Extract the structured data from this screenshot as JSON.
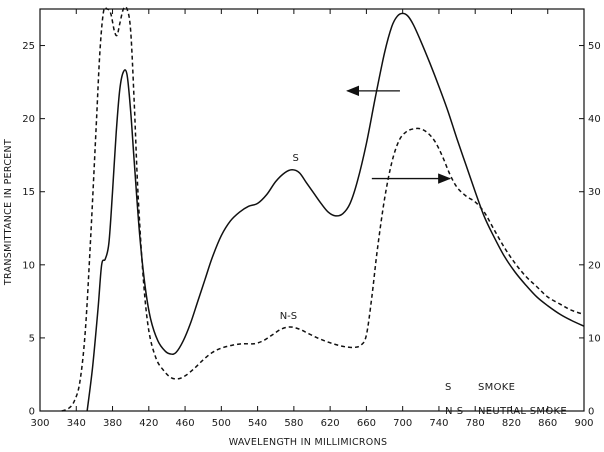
{
  "chart_data": {
    "type": "line",
    "title": "",
    "xlabel": "WAVELENGTH IN MILLIMICRONS",
    "ylabel": "TRANSMITTANCE IN PERCENT",
    "xlim": [
      300,
      900
    ],
    "ylim_left": [
      0,
      27.5
    ],
    "ylim_right": [
      0,
      55
    ],
    "x_ticks": [
      300,
      340,
      380,
      420,
      460,
      500,
      540,
      580,
      620,
      660,
      700,
      740,
      780,
      820,
      860,
      900
    ],
    "y_ticks_left": [
      0,
      5,
      10,
      15,
      20,
      25
    ],
    "y_ticks_right": [
      0,
      10,
      20,
      30,
      40,
      50
    ],
    "grid": false,
    "series": [
      {
        "name": "S",
        "axis": "left",
        "line_style": "solid",
        "color": "#111111",
        "points": [
          [
            352,
            0
          ],
          [
            358,
            3
          ],
          [
            364,
            7
          ],
          [
            368,
            10
          ],
          [
            372,
            10.4
          ],
          [
            376,
            11.5
          ],
          [
            380,
            15
          ],
          [
            384,
            19
          ],
          [
            388,
            22
          ],
          [
            392,
            23.2
          ],
          [
            396,
            23
          ],
          [
            400,
            20.5
          ],
          [
            404,
            17
          ],
          [
            410,
            12
          ],
          [
            416,
            8.5
          ],
          [
            422,
            6.3
          ],
          [
            430,
            4.8
          ],
          [
            438,
            4.1
          ],
          [
            444,
            3.9
          ],
          [
            450,
            4.0
          ],
          [
            458,
            4.8
          ],
          [
            466,
            6
          ],
          [
            474,
            7.5
          ],
          [
            482,
            9
          ],
          [
            490,
            10.5
          ],
          [
            500,
            12
          ],
          [
            510,
            13
          ],
          [
            520,
            13.6
          ],
          [
            530,
            14
          ],
          [
            540,
            14.2
          ],
          [
            550,
            14.8
          ],
          [
            560,
            15.7
          ],
          [
            570,
            16.3
          ],
          [
            578,
            16.5
          ],
          [
            586,
            16.3
          ],
          [
            594,
            15.6
          ],
          [
            602,
            14.9
          ],
          [
            610,
            14.2
          ],
          [
            618,
            13.6
          ],
          [
            626,
            13.35
          ],
          [
            634,
            13.5
          ],
          [
            642,
            14.2
          ],
          [
            650,
            15.7
          ],
          [
            660,
            18.3
          ],
          [
            670,
            21.5
          ],
          [
            680,
            24.5
          ],
          [
            688,
            26.3
          ],
          [
            694,
            27.0
          ],
          [
            700,
            27.2
          ],
          [
            706,
            27.0
          ],
          [
            712,
            26.4
          ],
          [
            720,
            25.3
          ],
          [
            730,
            23.8
          ],
          [
            740,
            22.2
          ],
          [
            750,
            20.5
          ],
          [
            760,
            18.6
          ],
          [
            770,
            16.8
          ],
          [
            780,
            15
          ],
          [
            790,
            13.3
          ],
          [
            800,
            12
          ],
          [
            812,
            10.6
          ],
          [
            824,
            9.5
          ],
          [
            836,
            8.6
          ],
          [
            848,
            7.8
          ],
          [
            860,
            7.2
          ],
          [
            874,
            6.6
          ],
          [
            886,
            6.2
          ],
          [
            900,
            5.8
          ]
        ]
      },
      {
        "name": "N-S",
        "axis": "left",
        "line_style": "dashed",
        "color": "#111111",
        "points": [
          [
            324,
            0
          ],
          [
            332,
            0.2
          ],
          [
            338,
            0.7
          ],
          [
            344,
            2
          ],
          [
            350,
            5.5
          ],
          [
            356,
            12
          ],
          [
            362,
            19.5
          ],
          [
            366,
            24.5
          ],
          [
            370,
            27.3
          ],
          [
            374,
            27.9
          ],
          [
            378,
            27.2
          ],
          [
            382,
            26
          ],
          [
            385,
            25.7
          ],
          [
            388,
            26.5
          ],
          [
            392,
            27.6
          ],
          [
            396,
            27.8
          ],
          [
            400,
            26
          ],
          [
            404,
            21
          ],
          [
            408,
            15
          ],
          [
            414,
            9
          ],
          [
            420,
            5.5
          ],
          [
            428,
            3.6
          ],
          [
            436,
            2.8
          ],
          [
            444,
            2.3
          ],
          [
            452,
            2.2
          ],
          [
            460,
            2.4
          ],
          [
            470,
            2.9
          ],
          [
            480,
            3.5
          ],
          [
            490,
            4.0
          ],
          [
            500,
            4.3
          ],
          [
            512,
            4.5
          ],
          [
            524,
            4.6
          ],
          [
            536,
            4.6
          ],
          [
            546,
            4.8
          ],
          [
            556,
            5.2
          ],
          [
            566,
            5.6
          ],
          [
            576,
            5.75
          ],
          [
            586,
            5.6
          ],
          [
            596,
            5.3
          ],
          [
            606,
            5.0
          ],
          [
            616,
            4.75
          ],
          [
            626,
            4.55
          ],
          [
            636,
            4.4
          ],
          [
            646,
            4.35
          ],
          [
            654,
            4.5
          ],
          [
            660,
            5.2
          ],
          [
            666,
            7.8
          ],
          [
            672,
            11
          ],
          [
            680,
            14.5
          ],
          [
            688,
            17
          ],
          [
            696,
            18.5
          ],
          [
            704,
            19.1
          ],
          [
            712,
            19.3
          ],
          [
            720,
            19.3
          ],
          [
            728,
            19
          ],
          [
            736,
            18.4
          ],
          [
            744,
            17.4
          ],
          [
            752,
            16.2
          ],
          [
            760,
            15.3
          ],
          [
            770,
            14.7
          ],
          [
            780,
            14.3
          ],
          [
            790,
            13.6
          ],
          [
            800,
            12.5
          ],
          [
            812,
            11.2
          ],
          [
            824,
            10.1
          ],
          [
            836,
            9.2
          ],
          [
            848,
            8.5
          ],
          [
            860,
            7.8
          ],
          [
            874,
            7.3
          ],
          [
            886,
            6.9
          ],
          [
            900,
            6.6
          ]
        ]
      }
    ],
    "curve_labels": [
      {
        "text": "S",
        "x": 582,
        "y": 17.1
      },
      {
        "text": "N-S",
        "x": 574,
        "y": 6.3
      }
    ],
    "arrows": [
      {
        "from": [
          697,
          21.9
        ],
        "to": [
          639,
          21.9
        ],
        "meaning": "points to left axis"
      },
      {
        "from": [
          666,
          15.9
        ],
        "to": [
          752,
          15.9
        ],
        "meaning": "points to right axis"
      }
    ],
    "legend": {
      "placement": "lower-right",
      "entries": [
        {
          "key": "S",
          "label": "SMOKE"
        },
        {
          "key": "N-S",
          "label": "NEUTRAL SMOKE"
        }
      ]
    }
  }
}
